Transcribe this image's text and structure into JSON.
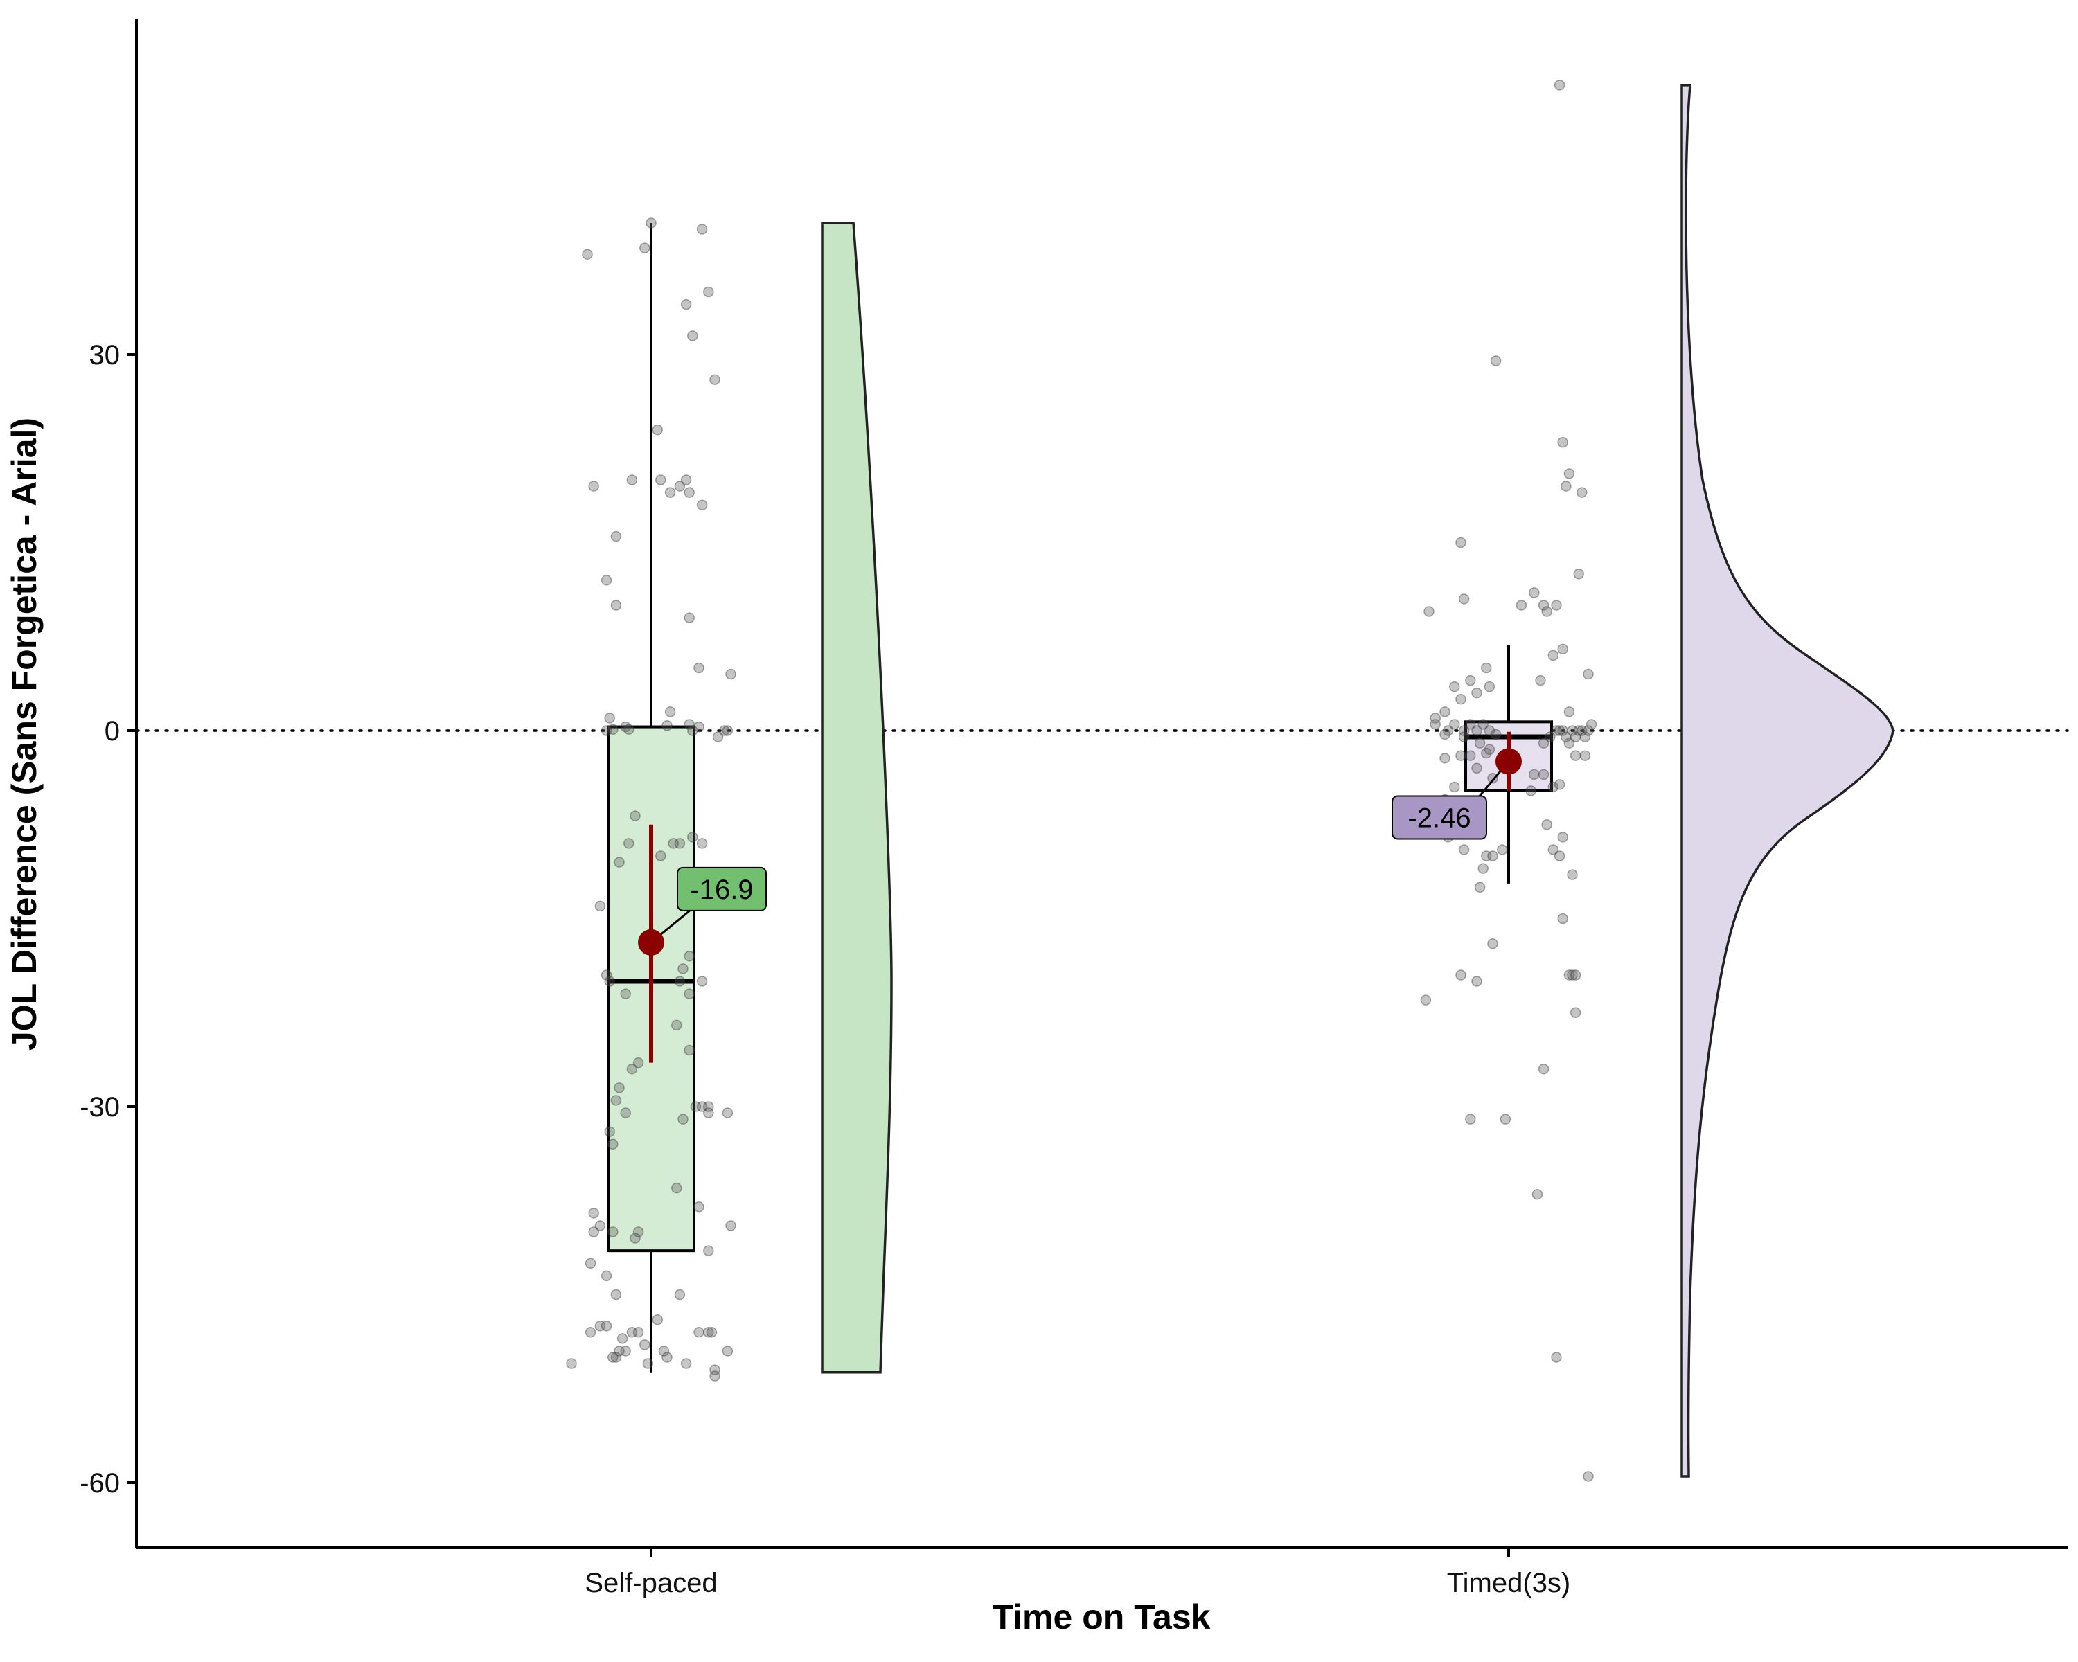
{
  "chart_data": {
    "type": "raincloud",
    "title": "",
    "xlabel": "Time on Task",
    "ylabel": "JOL Difference (Sans Forgetica - Arial)",
    "ylim": [
      -65,
      56
    ],
    "yticks": [
      -60,
      -30,
      0,
      30
    ],
    "reference_line": 0,
    "grid": false,
    "groups": [
      {
        "name": "Self-paced",
        "color_box": "#d5ecd4",
        "color_cloud": "#c6e5c5",
        "color_label": "#72bf70",
        "box": {
          "q1": -41.5,
          "median": -20,
          "q3": 0.3,
          "whisker_low": -51.2,
          "whisker_high": 40.5
        },
        "mean": -16.9,
        "ci": [
          -26.5,
          -7.5
        ],
        "mean_label": "-16.9",
        "points": [
          [
            -0.18,
            19.5
          ],
          [
            -0.14,
            12
          ],
          [
            -0.11,
            15.5
          ],
          [
            -0.2,
            38
          ],
          [
            -0.06,
            20
          ],
          [
            -0.02,
            38.5
          ],
          [
            0.0,
            40.5
          ],
          [
            0.02,
            24
          ],
          [
            0.03,
            20
          ],
          [
            0.06,
            19
          ],
          [
            0.09,
            19.5
          ],
          [
            0.12,
            19
          ],
          [
            0.11,
            20
          ],
          [
            0.16,
            40
          ],
          [
            0.11,
            34
          ],
          [
            0.13,
            31.5
          ],
          [
            0.16,
            18
          ],
          [
            0.18,
            35
          ],
          [
            0.2,
            28
          ],
          [
            0.25,
            4.5
          ],
          [
            0.12,
            9
          ],
          [
            0.15,
            5
          ],
          [
            0.23,
            0
          ],
          [
            0.24,
            0
          ],
          [
            0.21,
            -0.5
          ],
          [
            0.12,
            0.5
          ],
          [
            0.13,
            0
          ],
          [
            0.15,
            0.3
          ],
          [
            0.06,
            1.5
          ],
          [
            0.05,
            0.4
          ],
          [
            -0.11,
            10
          ],
          [
            -0.13,
            1
          ],
          [
            -0.12,
            0.1
          ],
          [
            -0.14,
            0
          ],
          [
            -0.08,
            0.3
          ],
          [
            -0.07,
            0.1
          ],
          [
            -0.16,
            -14
          ],
          [
            -0.14,
            -19.5
          ],
          [
            -0.1,
            -10.5
          ],
          [
            -0.07,
            -9
          ],
          [
            -0.05,
            -6.8
          ],
          [
            -0.08,
            -21
          ],
          [
            -0.13,
            -20
          ],
          [
            -0.06,
            -27
          ],
          [
            -0.04,
            -26.5
          ],
          [
            -0.1,
            -28.5
          ],
          [
            -0.11,
            -29.5
          ],
          [
            -0.08,
            -30.5
          ],
          [
            -0.13,
            -32
          ],
          [
            -0.12,
            -33
          ],
          [
            -0.04,
            -40
          ],
          [
            -0.05,
            -40.5
          ],
          [
            0.03,
            -10
          ],
          [
            0.07,
            -9
          ],
          [
            0.09,
            -9
          ],
          [
            0.13,
            -8.5
          ],
          [
            0.16,
            -9
          ],
          [
            0.12,
            -18
          ],
          [
            0.1,
            -19
          ],
          [
            0.12,
            -21
          ],
          [
            0.09,
            -20
          ],
          [
            0.16,
            -20
          ],
          [
            0.08,
            -23.5
          ],
          [
            0.12,
            -25.5
          ],
          [
            0.1,
            -31
          ],
          [
            0.16,
            -30
          ],
          [
            0.14,
            -30
          ],
          [
            0.18,
            -30.5
          ],
          [
            0.18,
            -30
          ],
          [
            0.24,
            -30.5
          ],
          [
            0.08,
            -36.5
          ],
          [
            0.15,
            -38
          ],
          [
            0.25,
            -39.5
          ],
          [
            0.18,
            -41.5
          ],
          [
            -0.18,
            -38.5
          ],
          [
            -0.16,
            -39.5
          ],
          [
            -0.18,
            -40
          ],
          [
            -0.12,
            -40
          ],
          [
            -0.19,
            -42.5
          ],
          [
            -0.14,
            -43.5
          ],
          [
            -0.11,
            -45
          ],
          [
            -0.19,
            -48
          ],
          [
            -0.16,
            -47.5
          ],
          [
            -0.14,
            -47.5
          ],
          [
            -0.06,
            -48
          ],
          [
            -0.09,
            -48.5
          ],
          [
            -0.04,
            -48
          ],
          [
            -0.02,
            -49
          ],
          [
            -0.1,
            -49.5
          ],
          [
            -0.11,
            -50
          ],
          [
            -0.12,
            -50
          ],
          [
            -0.08,
            -49.5
          ],
          [
            -0.01,
            -50.5
          ],
          [
            0.02,
            -47
          ],
          [
            0.04,
            -49.5
          ],
          [
            0.05,
            -50
          ],
          [
            0.09,
            -45
          ],
          [
            0.11,
            -50.5
          ],
          [
            0.15,
            -48
          ],
          [
            0.18,
            -48
          ],
          [
            0.19,
            -48
          ],
          [
            0.24,
            -49.5
          ],
          [
            0.2,
            -51
          ],
          [
            0.2,
            -51.5
          ],
          [
            -0.25,
            -50.5
          ]
        ]
      },
      {
        "name": "Timed(3s)",
        "color_box": "#e6e0ef",
        "color_cloud": "#dfd8ea",
        "color_label": "#a896c5",
        "box": {
          "q1": -4.8,
          "median": -0.5,
          "q3": 0.7,
          "whisker_low": -12.2,
          "whisker_high": 6.8
        },
        "mean": -2.46,
        "ci": [
          -4.8,
          -0.1
        ],
        "mean_label": "-2.46",
        "points": [
          [
            -0.25,
            9.5
          ],
          [
            -0.15,
            15
          ],
          [
            -0.04,
            29.5
          ],
          [
            -0.14,
            10.5
          ],
          [
            0.04,
            10
          ],
          [
            0.08,
            11
          ],
          [
            0.11,
            10
          ],
          [
            0.12,
            9.5
          ],
          [
            0.15,
            10
          ],
          [
            0.17,
            6.5
          ],
          [
            0.22,
            12.5
          ],
          [
            0.25,
            4.5
          ],
          [
            0.14,
            6
          ],
          [
            0.1,
            4
          ],
          [
            -0.07,
            5
          ],
          [
            -0.12,
            4
          ],
          [
            -0.1,
            3
          ],
          [
            -0.06,
            3.5
          ],
          [
            -0.15,
            2.5
          ],
          [
            -0.17,
            3.5
          ],
          [
            -0.2,
            1.5
          ],
          [
            -0.23,
            1
          ],
          [
            -0.23,
            0.5
          ],
          [
            -0.19,
            0
          ],
          [
            -0.17,
            0.5
          ],
          [
            -0.14,
            0
          ],
          [
            -0.12,
            0.5
          ],
          [
            -0.1,
            0
          ],
          [
            -0.08,
            0.5
          ],
          [
            -0.06,
            0
          ],
          [
            -0.04,
            -0.3
          ],
          [
            -0.14,
            -0.5
          ],
          [
            -0.2,
            -0.3
          ],
          [
            -0.15,
            -2
          ],
          [
            -0.2,
            -2.2
          ],
          [
            -0.12,
            -2
          ],
          [
            -0.1,
            -3
          ],
          [
            -0.07,
            -1.8
          ],
          [
            -0.09,
            -1
          ],
          [
            -0.06,
            -1.5
          ],
          [
            -0.05,
            -3.8
          ],
          [
            -0.2,
            -5.5
          ],
          [
            -0.17,
            -4.5
          ],
          [
            -0.19,
            -8.5
          ],
          [
            -0.14,
            -9.5
          ],
          [
            -0.07,
            -10
          ],
          [
            -0.05,
            -10
          ],
          [
            -0.08,
            -11
          ],
          [
            -0.09,
            -12.5
          ],
          [
            -0.02,
            -9.5
          ],
          [
            0.07,
            -4.8
          ],
          [
            0.08,
            -3.5
          ],
          [
            0.11,
            -3.5
          ],
          [
            0.14,
            -4.5
          ],
          [
            0.16,
            -4.3
          ],
          [
            0.21,
            -2
          ],
          [
            0.24,
            -2
          ],
          [
            0.11,
            -1
          ],
          [
            0.13,
            -0.5
          ],
          [
            0.15,
            0
          ],
          [
            0.16,
            0
          ],
          [
            0.17,
            0
          ],
          [
            0.19,
            1.5
          ],
          [
            0.2,
            0
          ],
          [
            0.21,
            -0.5
          ],
          [
            0.22,
            0
          ],
          [
            0.23,
            0
          ],
          [
            0.24,
            -0.5
          ],
          [
            0.25,
            0
          ],
          [
            0.26,
            0.5
          ],
          [
            0.18,
            -0.5
          ],
          [
            0.19,
            -1
          ],
          [
            0.12,
            -7.5
          ],
          [
            0.14,
            -9.5
          ],
          [
            0.17,
            -8.5
          ],
          [
            0.2,
            -11.5
          ],
          [
            0.16,
            -10
          ],
          [
            0.17,
            -15
          ],
          [
            0.19,
            -19.5
          ],
          [
            0.2,
            -19.5
          ],
          [
            0.21,
            -19.5
          ],
          [
            0.21,
            -22.5
          ],
          [
            -0.15,
            -19.5
          ],
          [
            -0.26,
            -21.5
          ],
          [
            -0.1,
            -20
          ],
          [
            -0.05,
            -17
          ],
          [
            -0.12,
            -31
          ],
          [
            -0.01,
            -31
          ],
          [
            0.11,
            -27
          ],
          [
            0.09,
            -37
          ],
          [
            0.15,
            -50
          ],
          [
            0.25,
            -59.5
          ],
          [
            0.16,
            51.5
          ],
          [
            0.17,
            23
          ],
          [
            0.19,
            20.5
          ],
          [
            0.18,
            19.5
          ],
          [
            0.23,
            19
          ]
        ]
      }
    ]
  }
}
